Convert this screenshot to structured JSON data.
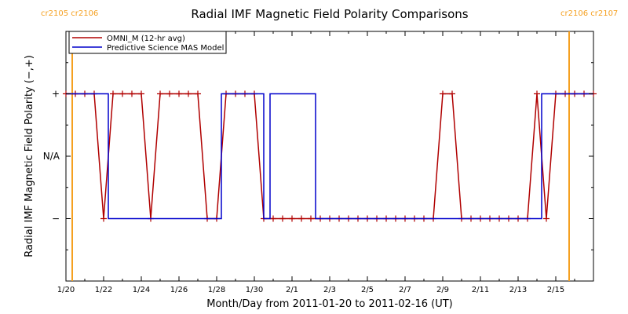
{
  "chart_data": {
    "type": "line",
    "title": "Radial IMF Magnetic Field Polarity Comparisons",
    "xlabel": "Month/Day from 2011-01-20 to 2011-02-16 (UT)",
    "ylabel": "Radial IMF Magnetic Field Polarity (−,+)",
    "x_unit": "date (UT)",
    "xlim": [
      "2011-01-20",
      "2011-02-16"
    ],
    "x_tick_labels": [
      "1/20",
      "1/22",
      "1/24",
      "1/26",
      "1/28",
      "1/30",
      "2/1",
      "2/3",
      "2/5",
      "2/7",
      "2/9",
      "2/11",
      "2/13",
      "2/15"
    ],
    "y_categories": [
      "−",
      "N/A",
      "+"
    ],
    "y_values": {
      "minus": -1,
      "na": 0,
      "plus": 1
    },
    "ylim": [
      -2,
      2
    ],
    "grid": false,
    "legend_position": "top-left",
    "carrington_markers": [
      {
        "date": "2011-01-20T08:00",
        "label": "cr2105 cr2106",
        "side": "left"
      },
      {
        "date": "2011-02-15T17:00",
        "label": "cr2106 cr2107",
        "side": "right"
      }
    ],
    "series": [
      {
        "name": "OMNI_M (12-hr avg)",
        "color": "#b00000",
        "marker": "plus",
        "points": [
          [
            "2011-01-20T00:00",
            1
          ],
          [
            "2011-01-20T12:00",
            1
          ],
          [
            "2011-01-21T00:00",
            1
          ],
          [
            "2011-01-21T12:00",
            1
          ],
          [
            "2011-01-22T00:00",
            -1
          ],
          [
            "2011-01-22T12:00",
            1
          ],
          [
            "2011-01-23T00:00",
            1
          ],
          [
            "2011-01-23T12:00",
            1
          ],
          [
            "2011-01-24T00:00",
            1
          ],
          [
            "2011-01-24T12:00",
            -1
          ],
          [
            "2011-01-25T00:00",
            1
          ],
          [
            "2011-01-25T12:00",
            1
          ],
          [
            "2011-01-26T00:00",
            1
          ],
          [
            "2011-01-26T12:00",
            1
          ],
          [
            "2011-01-27T00:00",
            1
          ],
          [
            "2011-01-27T12:00",
            -1
          ],
          [
            "2011-01-28T00:00",
            -1
          ],
          [
            "2011-01-28T12:00",
            1
          ],
          [
            "2011-01-29T00:00",
            1
          ],
          [
            "2011-01-29T12:00",
            1
          ],
          [
            "2011-01-30T00:00",
            1
          ],
          [
            "2011-01-30T12:00",
            -1
          ],
          [
            "2011-01-31T00:00",
            -1
          ],
          [
            "2011-01-31T12:00",
            -1
          ],
          [
            "2011-02-01T00:00",
            -1
          ],
          [
            "2011-02-01T12:00",
            -1
          ],
          [
            "2011-02-02T00:00",
            -1
          ],
          [
            "2011-02-02T12:00",
            -1
          ],
          [
            "2011-02-03T00:00",
            -1
          ],
          [
            "2011-02-03T12:00",
            -1
          ],
          [
            "2011-02-04T00:00",
            -1
          ],
          [
            "2011-02-04T12:00",
            -1
          ],
          [
            "2011-02-05T00:00",
            -1
          ],
          [
            "2011-02-05T12:00",
            -1
          ],
          [
            "2011-02-06T00:00",
            -1
          ],
          [
            "2011-02-06T12:00",
            -1
          ],
          [
            "2011-02-07T00:00",
            -1
          ],
          [
            "2011-02-07T12:00",
            -1
          ],
          [
            "2011-02-08T00:00",
            -1
          ],
          [
            "2011-02-08T12:00",
            -1
          ],
          [
            "2011-02-09T00:00",
            1
          ],
          [
            "2011-02-09T12:00",
            1
          ],
          [
            "2011-02-10T00:00",
            -1
          ],
          [
            "2011-02-10T12:00",
            -1
          ],
          [
            "2011-02-11T00:00",
            -1
          ],
          [
            "2011-02-11T12:00",
            -1
          ],
          [
            "2011-02-12T00:00",
            -1
          ],
          [
            "2011-02-12T12:00",
            -1
          ],
          [
            "2011-02-13T00:00",
            -1
          ],
          [
            "2011-02-13T12:00",
            -1
          ],
          [
            "2011-02-14T00:00",
            1
          ],
          [
            "2011-02-14T12:00",
            -1
          ],
          [
            "2011-02-15T00:00",
            1
          ],
          [
            "2011-02-15T12:00",
            1
          ],
          [
            "2011-02-16T00:00",
            1
          ],
          [
            "2011-02-16T12:00",
            1
          ],
          [
            "2011-02-17T00:00",
            1
          ]
        ]
      },
      {
        "name": "Predictive Science MAS Model",
        "color": "#0000cc",
        "marker": "none",
        "step": true,
        "points": [
          [
            "2011-01-20T00:00",
            1
          ],
          [
            "2011-01-22T00:00",
            1
          ],
          [
            "2011-01-22T06:00",
            -1
          ],
          [
            "2011-01-28T00:00",
            -1
          ],
          [
            "2011-01-28T06:00",
            1
          ],
          [
            "2011-01-30T00:00",
            1
          ],
          [
            "2011-01-30T12:00",
            -1
          ],
          [
            "2011-01-30T20:00",
            1
          ],
          [
            "2011-02-02T00:00",
            1
          ],
          [
            "2011-02-02T06:00",
            -1
          ],
          [
            "2011-02-14T00:00",
            -1
          ],
          [
            "2011-02-14T06:00",
            1
          ],
          [
            "2011-02-17T00:00",
            1
          ]
        ]
      }
    ]
  }
}
